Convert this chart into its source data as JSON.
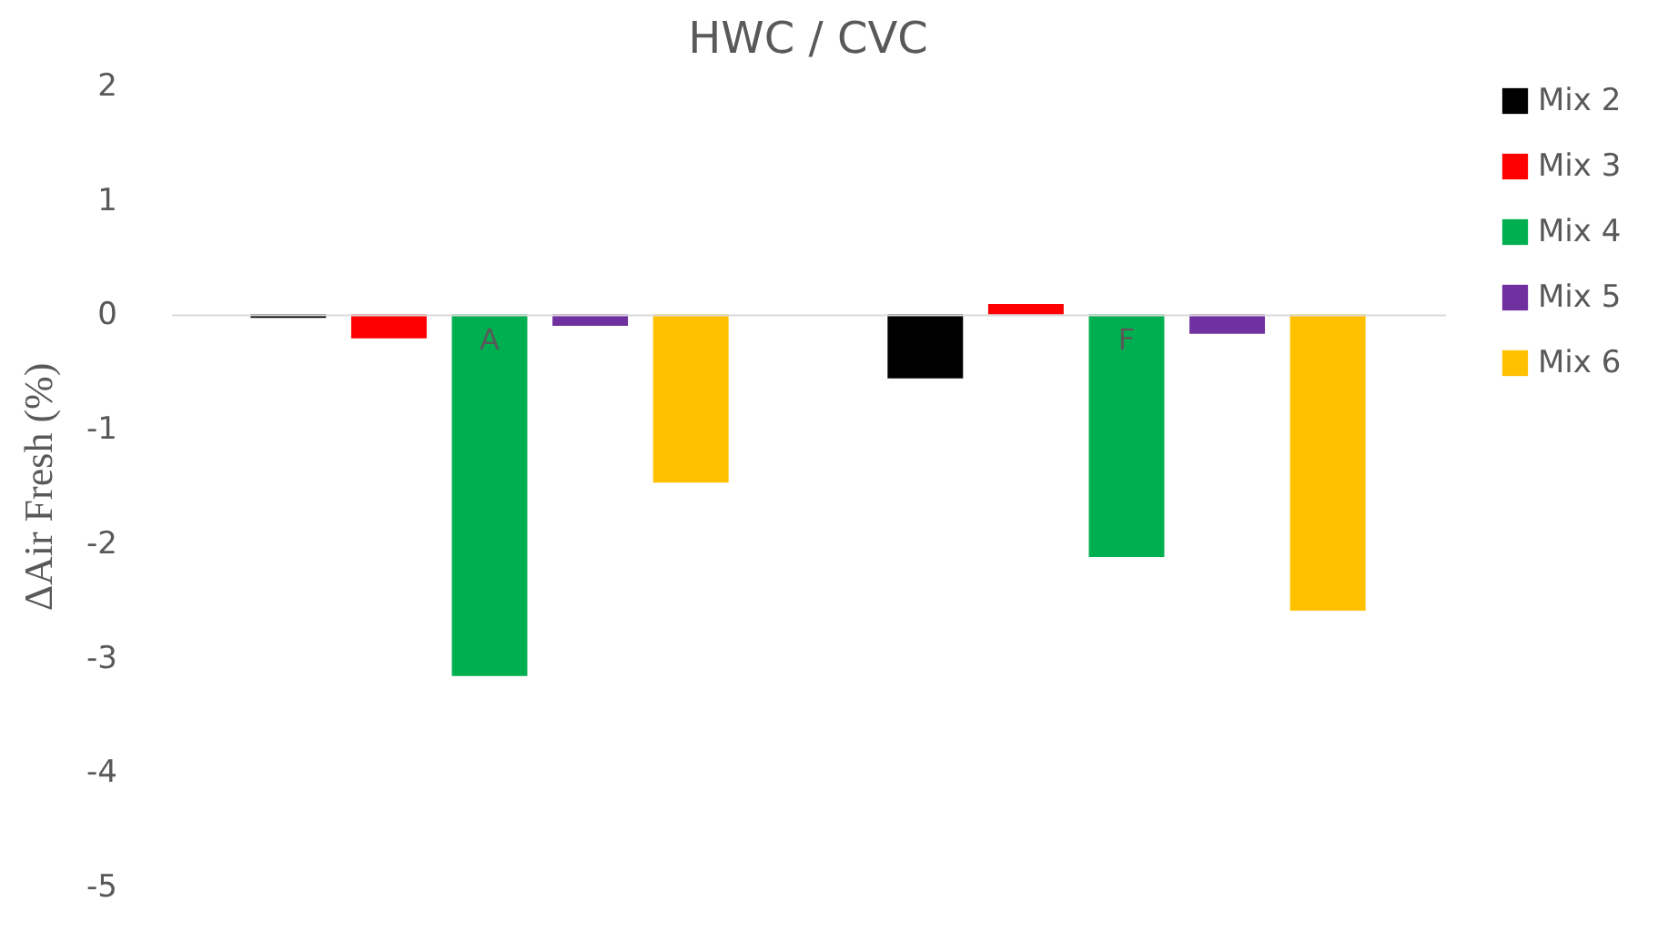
{
  "chart_data": {
    "type": "bar",
    "title": "HWC / CVC",
    "ylabel": "ΔAir Fresh (%)",
    "categories": [
      "A",
      "F"
    ],
    "series": [
      {
        "name": "Mix 2",
        "color": "#000000",
        "values": [
          -0.03,
          -0.56
        ]
      },
      {
        "name": "Mix 3",
        "color": "#ff0000",
        "values": [
          -0.21,
          0.09
        ]
      },
      {
        "name": "Mix 4",
        "color": "#00b050",
        "values": [
          -3.16,
          -2.12
        ]
      },
      {
        "name": "Mix 5",
        "color": "#7030a0",
        "values": [
          -0.1,
          -0.17
        ]
      },
      {
        "name": "Mix 6",
        "color": "#ffc000",
        "values": [
          -1.47,
          -2.59
        ]
      }
    ],
    "ylim": [
      -5,
      2
    ],
    "yticks": [
      -5,
      -4,
      -3,
      -2,
      -1,
      0,
      1,
      2
    ],
    "grid": false,
    "legend": "right"
  }
}
